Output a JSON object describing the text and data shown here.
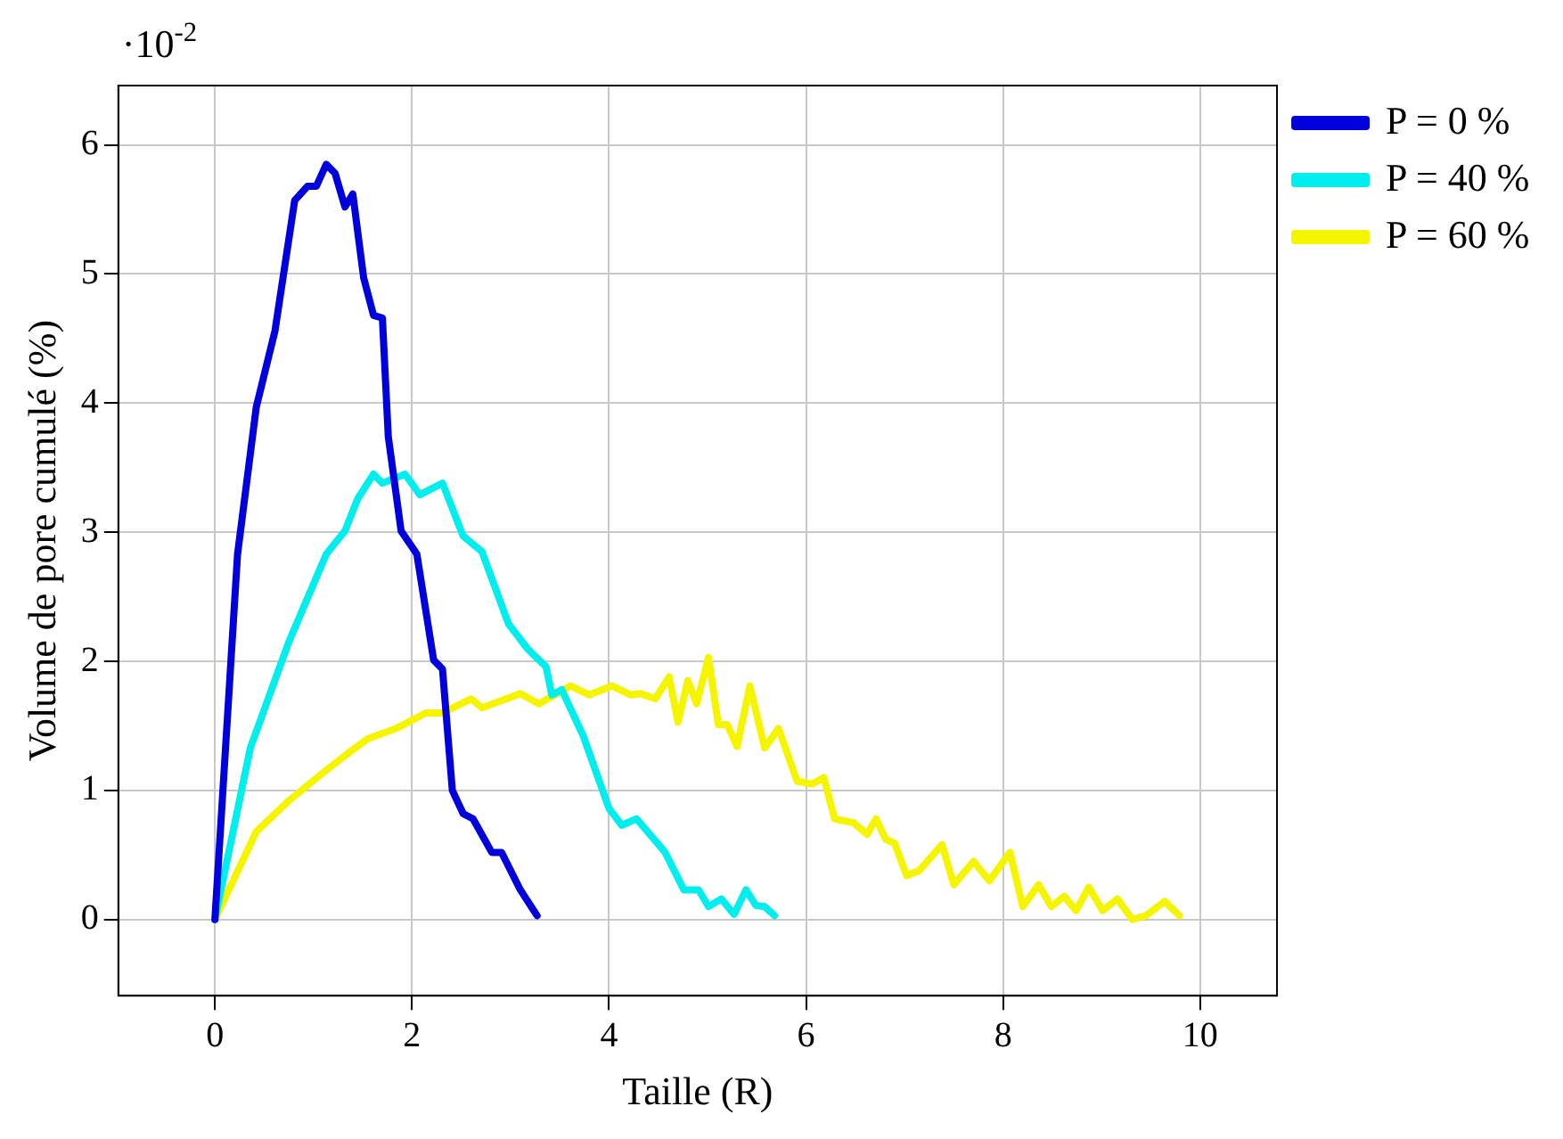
{
  "chart_data": {
    "type": "line",
    "xlabel": "Taille (R)",
    "ylabel": "Volume de pore cumulé (%)",
    "annotations": [
      "·10$^{-2}$"
    ],
    "xlim": [
      -0.98,
      10.78
    ],
    "ylim": [
      -0.59,
      6.46
    ],
    "xticks": [
      0,
      2,
      4,
      6,
      8,
      10
    ],
    "yticks": [
      0,
      1,
      2,
      3,
      4,
      5,
      6
    ],
    "grid": true,
    "legend": "top right",
    "line_style": "solid",
    "series": [
      {
        "name": "P = 0 %",
        "color": "#0000dd",
        "x": [
          0,
          0.23,
          0.42,
          0.61,
          0.81,
          0.94,
          1.03,
          1.13,
          1.22,
          1.32,
          1.4,
          1.51,
          1.61,
          1.7,
          1.76,
          1.89,
          2.05,
          2.22,
          2.31,
          2.41,
          2.52,
          2.62,
          2.81,
          2.91,
          3.1,
          3.27
        ],
        "values": [
          0,
          2.83,
          3.97,
          4.56,
          5.57,
          5.68,
          5.68,
          5.85,
          5.78,
          5.52,
          5.62,
          4.97,
          4.68,
          4.66,
          3.74,
          3.01,
          2.83,
          2.01,
          1.94,
          1,
          0.82,
          0.78,
          0.52,
          0.52,
          0.23,
          0.03
        ]
      },
      {
        "name": "P = 40 %",
        "color": "#00eeee",
        "x": [
          0,
          0.36,
          0.75,
          1.13,
          1.32,
          1.45,
          1.61,
          1.7,
          1.93,
          2.08,
          2.31,
          2.52,
          2.71,
          2.98,
          3.17,
          3.29,
          3.36,
          3.42,
          3.52,
          3.74,
          4,
          4.13,
          4.28,
          4.57,
          4.76,
          4.91,
          5.01,
          5.14,
          5.27,
          5.39,
          5.49,
          5.58,
          5.68
        ],
        "values": [
          0,
          1.33,
          2.15,
          2.83,
          3.01,
          3.26,
          3.45,
          3.38,
          3.45,
          3.29,
          3.38,
          2.97,
          2.85,
          2.29,
          2.1,
          2.01,
          1.96,
          1.74,
          1.78,
          1.42,
          0.86,
          0.73,
          0.78,
          0.52,
          0.23,
          0.23,
          0.1,
          0.16,
          0.04,
          0.23,
          0.11,
          0.1,
          0.03
        ]
      },
      {
        "name": "P = 60 %",
        "color": "#f5f500",
        "x": [
          0,
          0.42,
          0.75,
          1.07,
          1.32,
          1.55,
          1.84,
          2.14,
          2.31,
          2.6,
          2.71,
          3.1,
          3.29,
          3.61,
          3.8,
          4.03,
          4.22,
          4.32,
          4.47,
          4.61,
          4.7,
          4.8,
          4.89,
          5.01,
          5.11,
          5.2,
          5.3,
          5.43,
          5.58,
          5.72,
          5.91,
          6.06,
          6.18,
          6.29,
          6.48,
          6.62,
          6.71,
          6.81,
          6.9,
          7.02,
          7.15,
          7.38,
          7.5,
          7.7,
          7.86,
          8.07,
          8.2,
          8.36,
          8.49,
          8.62,
          8.74,
          8.87,
          9.01,
          9.16,
          9.31,
          9.45,
          9.64,
          9.79
        ],
        "values": [
          0,
          0.68,
          0.92,
          1.12,
          1.27,
          1.4,
          1.48,
          1.6,
          1.6,
          1.71,
          1.64,
          1.75,
          1.67,
          1.81,
          1.74,
          1.81,
          1.74,
          1.75,
          1.71,
          1.88,
          1.53,
          1.85,
          1.67,
          2.03,
          1.51,
          1.51,
          1.34,
          1.81,
          1.33,
          1.48,
          1.07,
          1.05,
          1.1,
          0.78,
          0.75,
          0.66,
          0.78,
          0.62,
          0.59,
          0.34,
          0.38,
          0.58,
          0.27,
          0.45,
          0.3,
          0.52,
          0.1,
          0.27,
          0.1,
          0.18,
          0.07,
          0.25,
          0.07,
          0.16,
          0,
          0.03,
          0.14,
          0.03
        ]
      }
    ]
  }
}
